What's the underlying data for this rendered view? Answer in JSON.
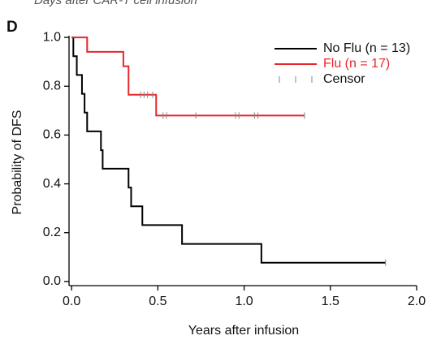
{
  "top_text": "Days after CAR-T cell infusion",
  "panel_label": "D",
  "chart_data": {
    "type": "survival",
    "xlabel": "Years after infusion",
    "ylabel": "Probability of DFS",
    "xlim": [
      -0.015,
      2.0
    ],
    "ylim": [
      -0.017,
      1.007
    ],
    "xticks": [
      {
        "value": 0,
        "label": "0.0"
      },
      0.5,
      {
        "value": 1,
        "label": "1.0"
      },
      1.5,
      {
        "value": 2,
        "label": "2.0"
      }
    ],
    "yticks": [
      {
        "value": 0,
        "label": "0.0"
      },
      0.2,
      0.4,
      0.6,
      0.8,
      {
        "value": 1,
        "label": "1.0"
      }
    ],
    "censor_label": "Censor",
    "censor_color": "#7fa89a",
    "legend": "upper right",
    "series": [
      {
        "name": "No Flu (n = 13)",
        "color": "#000000",
        "x": [
          0,
          0.01,
          0.03,
          0.06,
          0.075,
          0.09,
          0.17,
          0.18,
          0.33,
          0.345,
          0.41,
          0.64,
          1.1
        ],
        "values": [
          1,
          0.923,
          0.846,
          0.769,
          0.692,
          0.615,
          0.538,
          0.462,
          0.385,
          0.308,
          0.231,
          0.154,
          0.077
        ],
        "censor_x": [
          1.82
        ],
        "censor_values": [
          0.077
        ]
      },
      {
        "name": "Flu (n = 17)",
        "color": "#e8262b",
        "x": [
          0,
          0.09,
          0.3,
          0.33,
          0.49
        ],
        "values": [
          1,
          0.941,
          0.882,
          0.765,
          0.68
        ],
        "censor_x": [
          0.4,
          0.42,
          0.44,
          0.47,
          0.53,
          0.55,
          0.72,
          0.95,
          0.97,
          1.06,
          1.08,
          1.35
        ],
        "censor_values": [
          0.765,
          0.765,
          0.765,
          0.765,
          0.68,
          0.68,
          0.68,
          0.68,
          0.68,
          0.68,
          0.68,
          0.68
        ]
      }
    ]
  }
}
